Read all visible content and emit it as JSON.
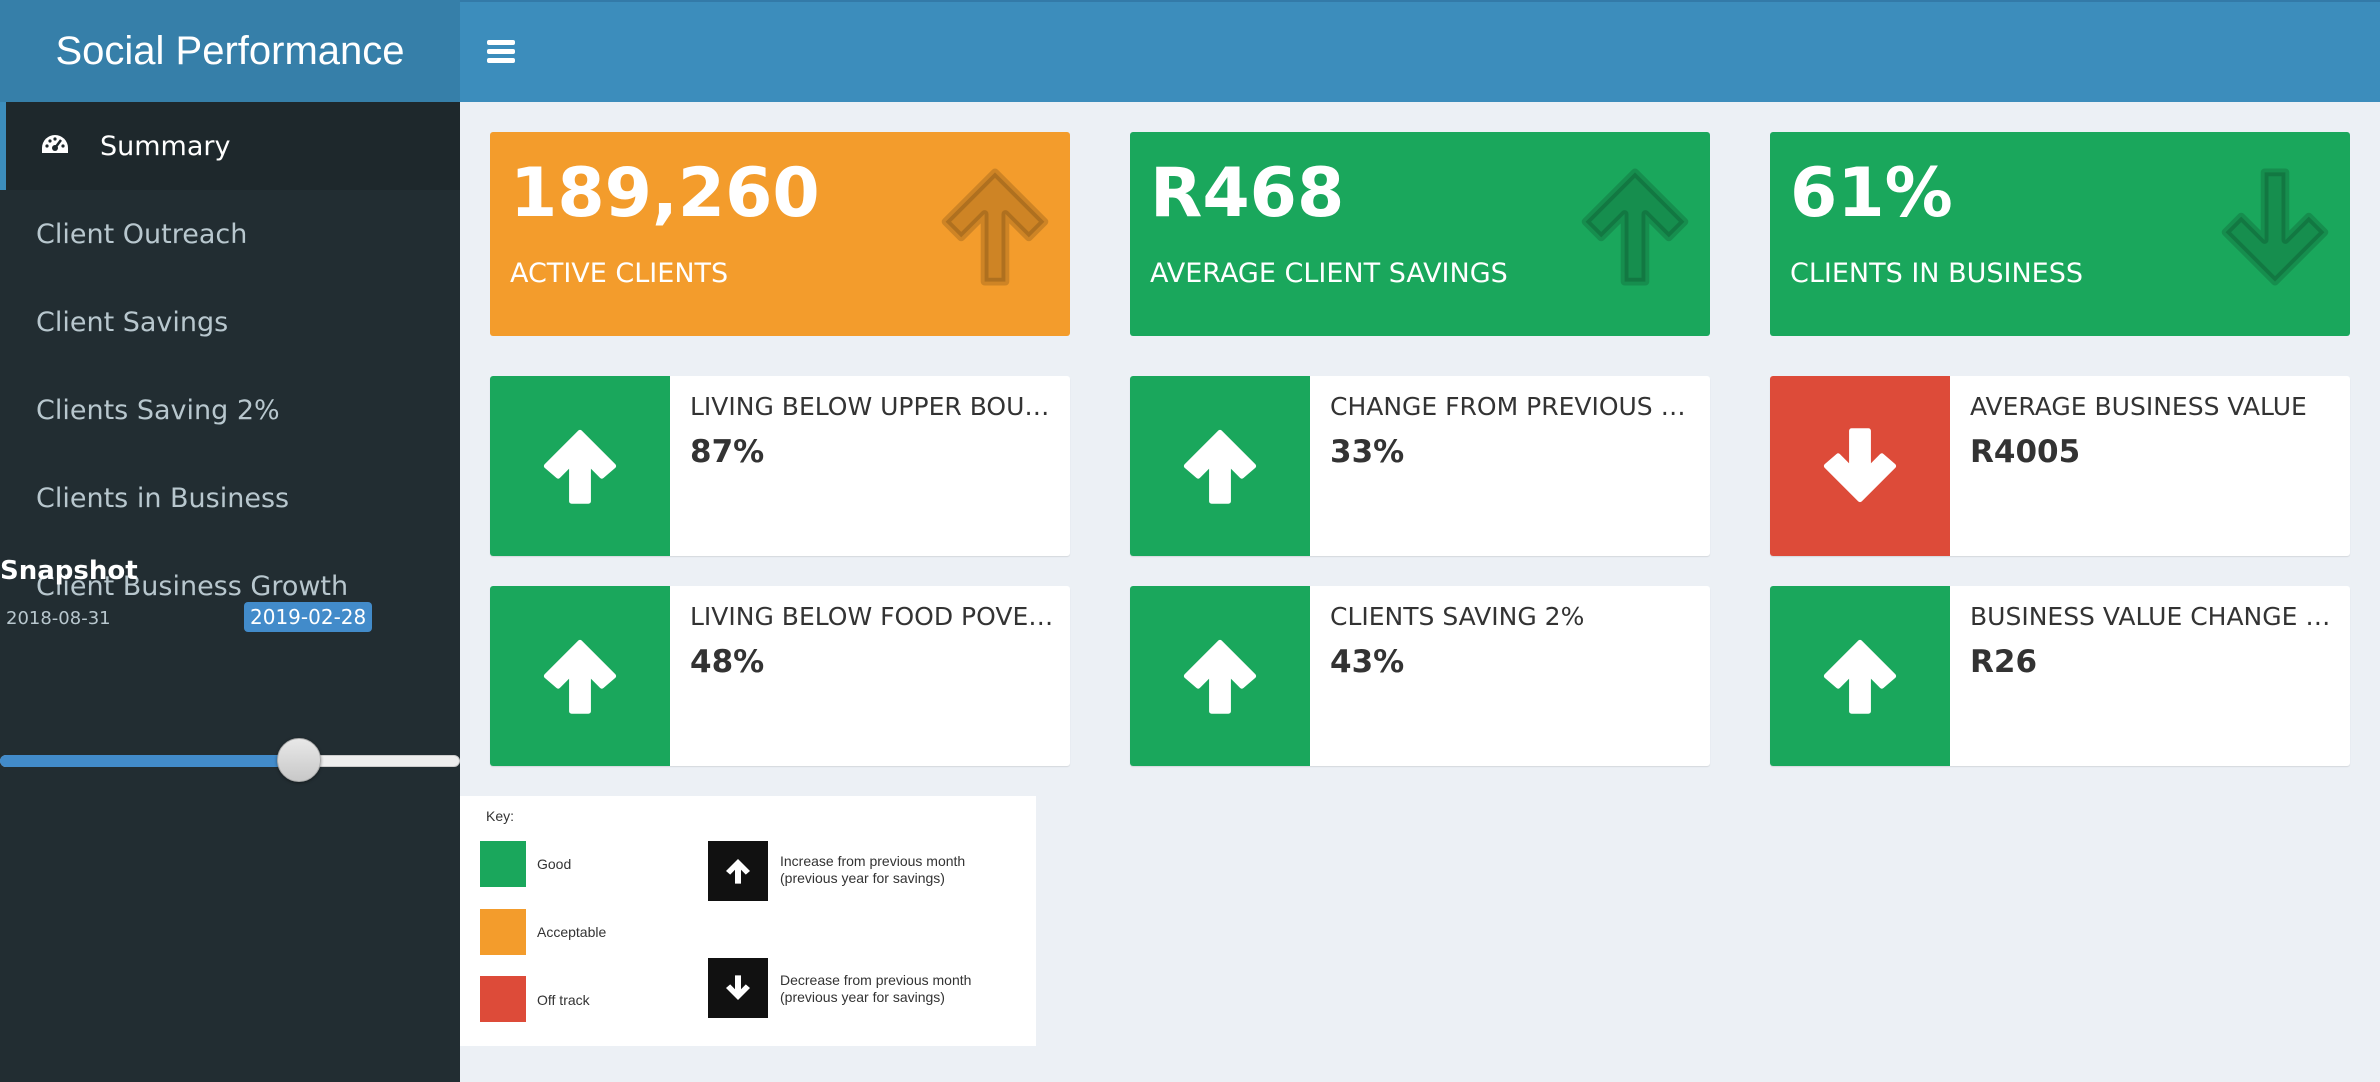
{
  "header": {
    "title": "Social Performance"
  },
  "sidebar": {
    "items": [
      {
        "label": "Summary"
      },
      {
        "label": "Client Outreach"
      },
      {
        "label": "Client Savings"
      },
      {
        "label": "Clients Saving 2%"
      },
      {
        "label": "Clients in Business"
      },
      {
        "label": "Client Business Growth"
      }
    ],
    "snapshot": {
      "label": "Snapshot",
      "min": "2018-08-31",
      "value": "2019-02-28",
      "position_fraction": 0.65
    }
  },
  "value_boxes": [
    {
      "value": "189,260",
      "label": "ACTIVE CLIENTS",
      "status": "acceptable",
      "color": "#f39c2c",
      "icon": "arrow-up-icon"
    },
    {
      "value": "R468",
      "label": "AVERAGE CLIENT SAVINGS",
      "status": "good",
      "color": "#1aa75c",
      "icon": "arrow-up-icon"
    },
    {
      "value": "61%",
      "label": "CLIENTS IN BUSINESS",
      "status": "good",
      "color": "#1aa75c",
      "icon": "arrow-down-icon"
    }
  ],
  "info_boxes": [
    {
      "label": "LIVING BELOW UPPER BOUND",
      "value": "87%",
      "color": "#1aa75c",
      "icon": "arrow-up-icon"
    },
    {
      "label": "CHANGE FROM PREVIOUS YE...",
      "value": "33%",
      "color": "#1aa75c",
      "icon": "arrow-up-icon"
    },
    {
      "label": "AVERAGE BUSINESS VALUE",
      "value": "R4005",
      "color": "#dd4b39",
      "icon": "arrow-down-icon"
    },
    {
      "label": "LIVING BELOW FOOD POVERTY",
      "value": "48%",
      "color": "#1aa75c",
      "icon": "arrow-up-icon"
    },
    {
      "label": "CLIENTS SAVING 2%",
      "value": "43%",
      "color": "#1aa75c",
      "icon": "arrow-up-icon"
    },
    {
      "label": "BUSINESS VALUE CHANGE E...",
      "value": "R26",
      "color": "#1aa75c",
      "icon": "arrow-up-icon"
    }
  ],
  "key": {
    "title": "Key:",
    "good": "Good",
    "acceptable": "Acceptable",
    "offtrack": "Off track",
    "increase_line1": "Increase from previous month",
    "increase_line2": "(previous year for savings)",
    "decrease_line1": "Decrease from previous month",
    "decrease_line2": "(previous year for savings)",
    "colors": {
      "good": "#1aa75c",
      "acceptable": "#f39c2c",
      "offtrack": "#dd4b39"
    }
  }
}
